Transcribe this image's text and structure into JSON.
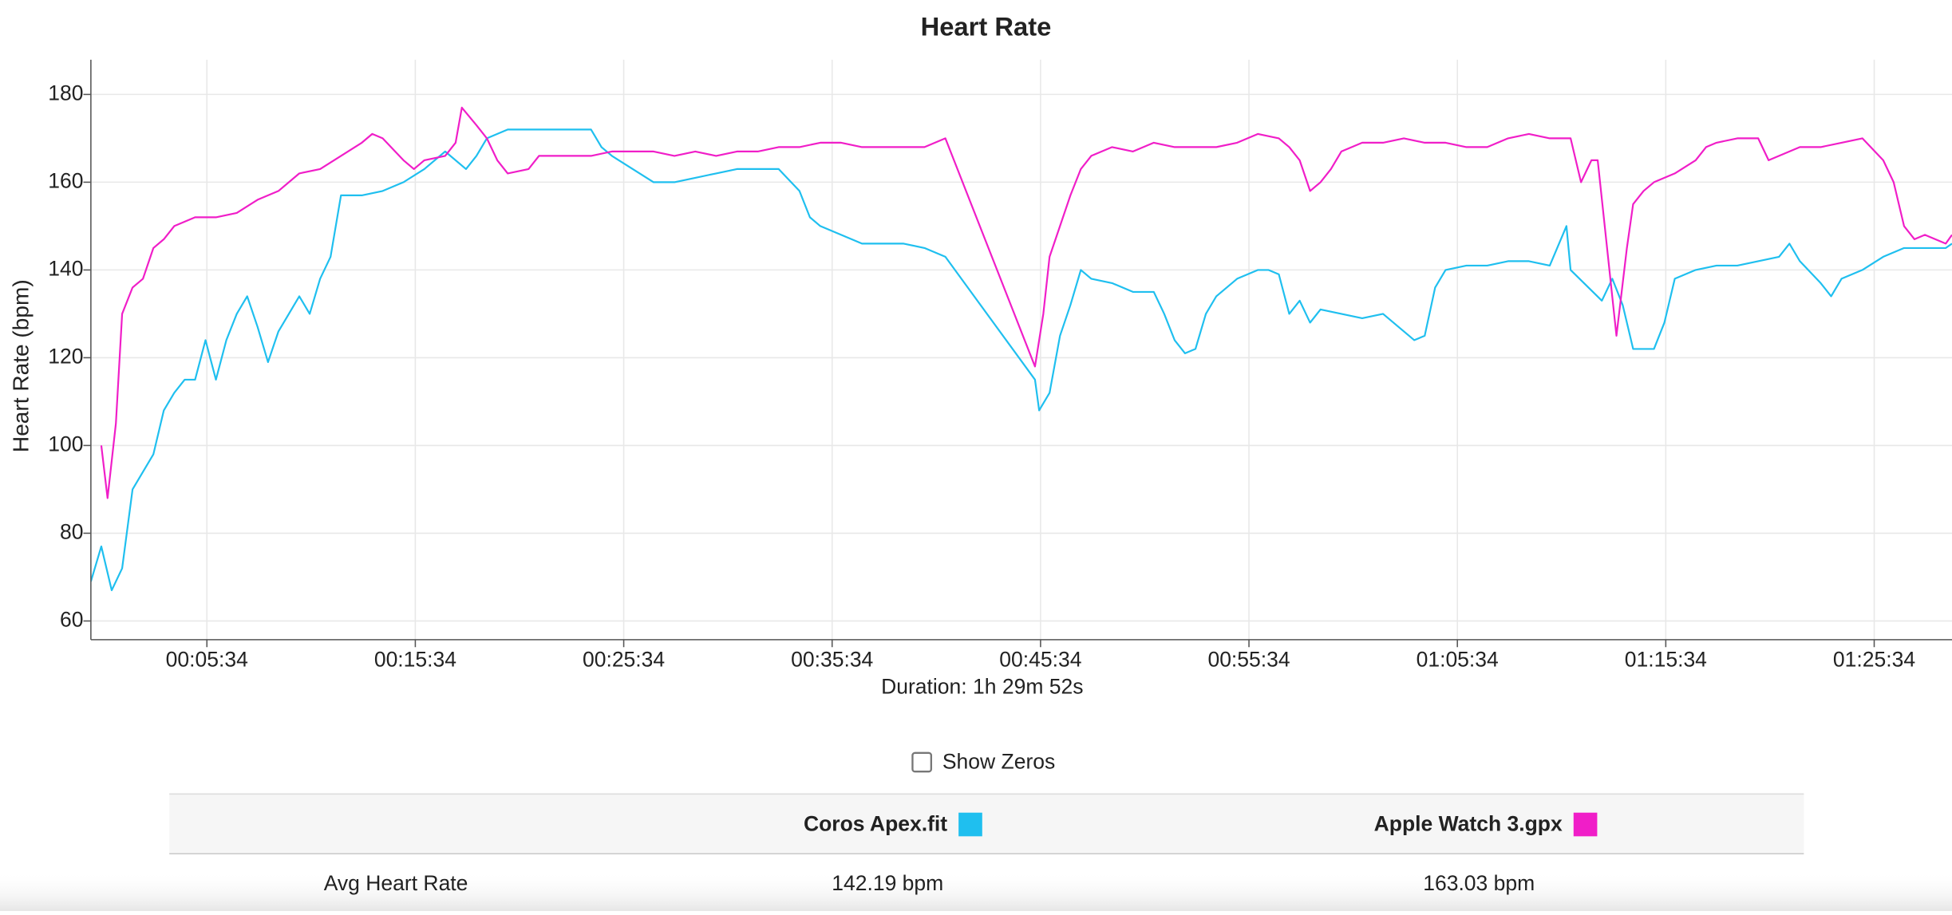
{
  "chart_data": {
    "type": "line",
    "title": "Heart Rate",
    "ylabel": "Heart Rate (bpm)",
    "xlabel": "Duration: 1h 29m 52s",
    "xlim": [
      0,
      89.3
    ],
    "ylim": [
      55.74,
      187.9
    ],
    "yticks": [
      60,
      80,
      100,
      120,
      140,
      160,
      180
    ],
    "xticks": [
      {
        "value": 5.567,
        "label": "00:05:34"
      },
      {
        "value": 15.567,
        "label": "00:15:34"
      },
      {
        "value": 25.567,
        "label": "00:25:34"
      },
      {
        "value": 35.567,
        "label": "00:35:34"
      },
      {
        "value": 45.567,
        "label": "00:45:34"
      },
      {
        "value": 55.567,
        "label": "00:55:34"
      },
      {
        "value": 65.567,
        "label": "01:05:34"
      },
      {
        "value": 75.567,
        "label": "01:15:34"
      },
      {
        "value": 85.567,
        "label": "01:25:34"
      }
    ],
    "grid": true,
    "series": [
      {
        "name": "Coros Apex.fit",
        "color": "#1fbfef",
        "x": [
          0,
          0.5,
          1,
          1.5,
          2,
          3,
          3.5,
          4,
          4.5,
          5,
          5.5,
          6,
          6.5,
          7,
          7.5,
          8,
          8.5,
          9,
          9.5,
          10,
          10.5,
          11,
          11.5,
          12,
          13,
          14,
          15,
          16,
          17,
          18,
          18.5,
          19,
          20,
          22,
          24,
          24.5,
          25,
          26,
          27,
          28,
          29,
          30,
          31,
          32,
          33,
          34,
          34.5,
          35,
          36,
          37,
          38,
          39,
          40,
          41,
          45.3,
          45.5,
          46,
          46.5,
          47,
          47.5,
          48,
          49,
          50,
          51,
          51.5,
          52,
          52.5,
          53,
          53.5,
          54,
          55,
          56,
          56.5,
          57,
          57.5,
          58,
          58.5,
          59,
          60,
          61,
          62,
          63,
          63.5,
          64,
          64.5,
          65,
          66,
          67,
          68,
          69,
          70,
          70.8,
          71,
          72.5,
          73,
          73.5,
          74,
          75,
          75.5,
          76,
          77,
          78,
          79,
          80,
          81,
          81.5,
          82,
          83,
          83.5,
          84,
          85,
          86,
          87,
          88,
          89,
          89.3
        ],
        "values": [
          69,
          77,
          67,
          72,
          90,
          98,
          108,
          112,
          115,
          115,
          124,
          115,
          124,
          130,
          134,
          127,
          119,
          126,
          130,
          134,
          130,
          138,
          143,
          157,
          157,
          158,
          160,
          163,
          167,
          163,
          166,
          170,
          172,
          172,
          172,
          168,
          166,
          163,
          160,
          160,
          161,
          162,
          163,
          163,
          163,
          158,
          152,
          150,
          148,
          146,
          146,
          146,
          145,
          143,
          115,
          108,
          112,
          125,
          132,
          140,
          138,
          137,
          135,
          135,
          130,
          124,
          121,
          122,
          130,
          134,
          138,
          140,
          140,
          139,
          130,
          133,
          128,
          131,
          130,
          129,
          130,
          126,
          124,
          125,
          136,
          140,
          141,
          141,
          142,
          142,
          141,
          150,
          140,
          133,
          138,
          132,
          122,
          122,
          128,
          138,
          140,
          141,
          141,
          142,
          143,
          146,
          142,
          137,
          134,
          138,
          140,
          143,
          145,
          145,
          145,
          146
        ]
      },
      {
        "name": "Apple Watch 3.gpx",
        "color": "#f01ec8",
        "x": [
          0.5,
          0.8,
          1.2,
          1.5,
          2,
          2.5,
          3,
          3.5,
          4,
          5,
          6,
          7,
          8,
          9,
          10,
          11,
          12,
          13,
          13.5,
          14,
          15,
          15.5,
          16,
          17,
          17.5,
          17.8,
          18.5,
          19,
          19.5,
          20,
          21,
          21.5,
          22,
          23,
          24,
          25,
          26,
          27,
          28,
          29,
          30,
          31,
          32,
          33,
          34,
          35,
          36,
          37,
          38,
          39,
          40,
          41,
          45.3,
          45.7,
          46,
          46.5,
          47,
          47.5,
          48,
          49,
          50,
          51,
          52,
          53,
          54,
          55,
          56,
          57,
          57.5,
          58,
          58.5,
          59,
          59.5,
          60,
          61,
          62,
          63,
          64,
          65,
          66,
          67,
          68,
          69,
          70,
          71,
          71.5,
          72,
          72.3,
          73.2,
          73.7,
          74,
          74.5,
          75,
          76,
          77,
          77.5,
          78,
          79,
          80,
          80.5,
          81,
          82,
          83,
          84,
          85,
          86,
          86.5,
          87,
          87.5,
          88,
          89,
          89.3
        ],
        "values": [
          100,
          88,
          105,
          130,
          136,
          138,
          145,
          147,
          150,
          152,
          152,
          153,
          156,
          158,
          162,
          163,
          166,
          169,
          171,
          170,
          165,
          163,
          165,
          166,
          169,
          177,
          173,
          170,
          165,
          162,
          163,
          166,
          166,
          166,
          166,
          167,
          167,
          167,
          166,
          167,
          166,
          167,
          167,
          168,
          168,
          169,
          169,
          168,
          168,
          168,
          168,
          170,
          118,
          130,
          143,
          150,
          157,
          163,
          166,
          168,
          167,
          169,
          168,
          168,
          168,
          169,
          171,
          170,
          168,
          165,
          158,
          160,
          163,
          167,
          169,
          169,
          170,
          169,
          169,
          168,
          168,
          170,
          171,
          170,
          170,
          160,
          165,
          165,
          125,
          145,
          155,
          158,
          160,
          162,
          165,
          168,
          169,
          170,
          170,
          165,
          166,
          168,
          168,
          169,
          170,
          165,
          160,
          150,
          147,
          148,
          146,
          148
        ]
      }
    ]
  },
  "controls": {
    "show_zeros": "Show Zeros"
  },
  "table": {
    "rows": [
      [
        "Avg Heart Rate",
        "142.19 bpm",
        "163.03 bpm"
      ]
    ]
  }
}
